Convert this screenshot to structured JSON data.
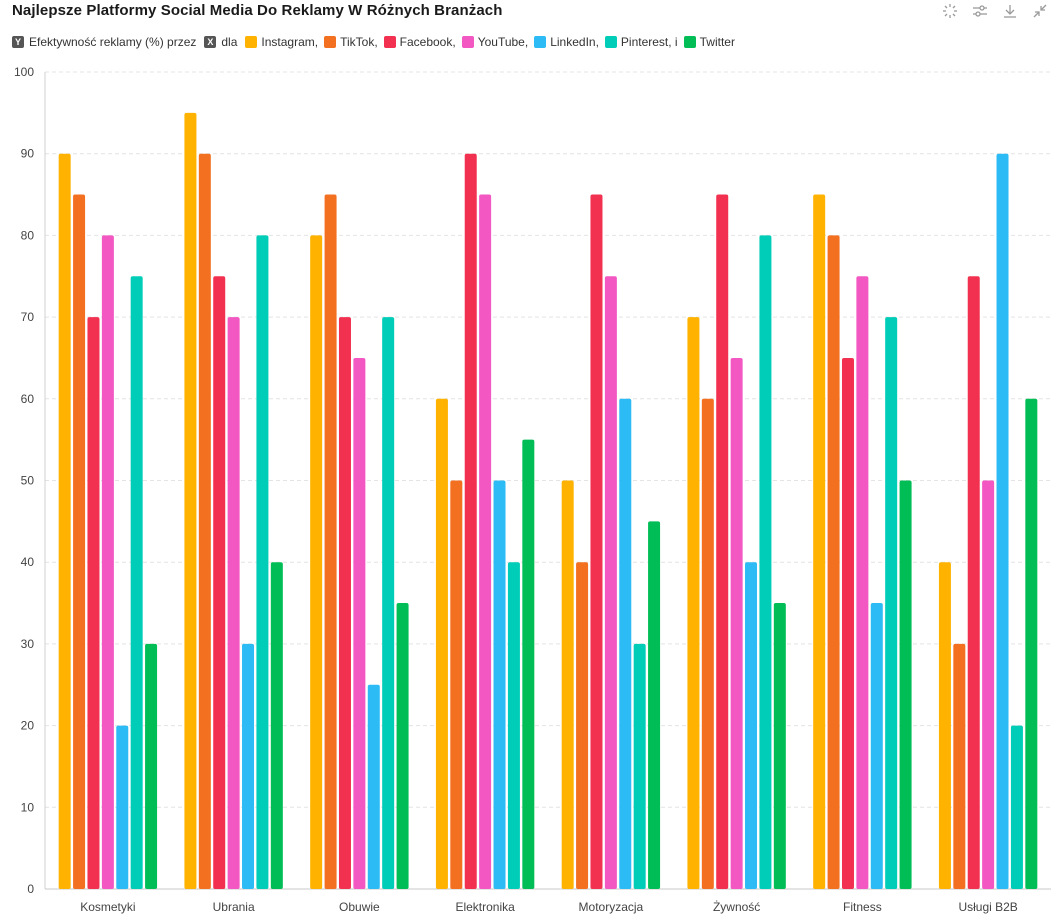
{
  "title": "Najlepsze Platformy Social Media Do Reklamy W Różnych Branżach",
  "toolbar": {
    "icons": [
      "reset-zoom-icon",
      "settings-sliders-icon",
      "download-icon",
      "collapse-icon"
    ]
  },
  "legend": {
    "y_badge": "Y",
    "y_text": "Efektywność reklamy (%) przez",
    "x_badge": "X",
    "x_text": "dla",
    "items": [
      {
        "label": "Instagram,",
        "color": "#FFB300"
      },
      {
        "label": "TikTok,",
        "color": "#F37021"
      },
      {
        "label": "Facebook,",
        "color": "#F2304F"
      },
      {
        "label": "YouTube,",
        "color": "#F257C2"
      },
      {
        "label": "LinkedIn,",
        "color": "#2CBBF5"
      },
      {
        "label": "Pinterest, i",
        "color": "#00CDB8"
      },
      {
        "label": "Twitter",
        "color": "#00BD55"
      }
    ]
  },
  "chart_data": {
    "type": "bar",
    "title": "Najlepsze Platformy Social Media Do Reklamy W Różnych Branżach",
    "xlabel": "",
    "ylabel": "",
    "ylim": [
      0,
      100
    ],
    "yticks": [
      "0",
      "10",
      "20",
      "30",
      "40",
      "50",
      "60",
      "70",
      "80",
      "90",
      "100"
    ],
    "grid": true,
    "categories": [
      "Kosmetyki",
      "Ubrania",
      "Obuwie",
      "Elektronika",
      "Motoryzacja",
      "Żywność",
      "Fitness",
      "Usługi B2B"
    ],
    "series": [
      {
        "name": "Instagram",
        "color": "#FFB300",
        "values": [
          90,
          95,
          80,
          60,
          50,
          70,
          85,
          40
        ]
      },
      {
        "name": "TikTok",
        "color": "#F37021",
        "values": [
          85,
          90,
          85,
          50,
          40,
          60,
          80,
          30
        ]
      },
      {
        "name": "Facebook",
        "color": "#F2304F",
        "values": [
          70,
          75,
          70,
          90,
          85,
          85,
          65,
          75
        ]
      },
      {
        "name": "YouTube",
        "color": "#F257C2",
        "values": [
          80,
          70,
          65,
          85,
          75,
          65,
          75,
          50
        ]
      },
      {
        "name": "LinkedIn",
        "color": "#2CBBF5",
        "values": [
          20,
          30,
          25,
          50,
          60,
          40,
          35,
          90
        ]
      },
      {
        "name": "Pinterest",
        "color": "#00CDB8",
        "values": [
          75,
          80,
          70,
          40,
          30,
          80,
          70,
          20
        ]
      },
      {
        "name": "Twitter",
        "color": "#00BD55",
        "values": [
          30,
          40,
          35,
          55,
          45,
          35,
          50,
          60
        ]
      }
    ]
  }
}
